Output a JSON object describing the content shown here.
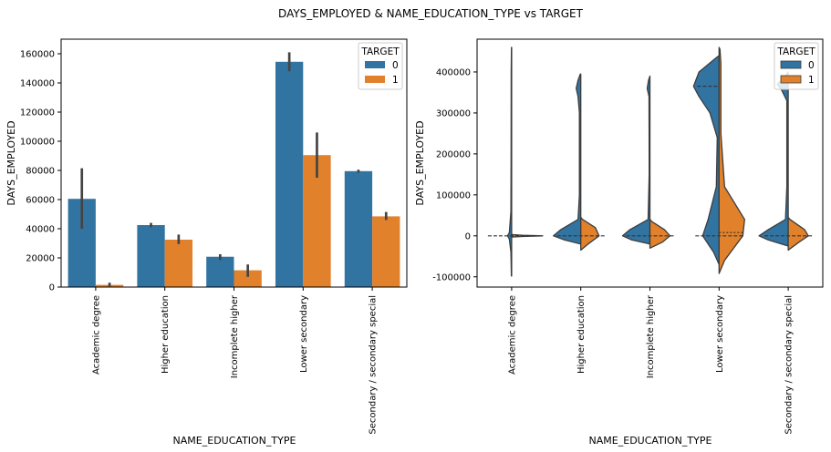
{
  "figure": {
    "title": "DAYS_EMPLOYED & NAME_EDUCATION_TYPE vs TARGET"
  },
  "colors": {
    "c0": "#3274a1",
    "c1": "#e1812c",
    "err": "#444444",
    "violin_edge": "#3c3c3c"
  },
  "chart_data": [
    {
      "type": "bar",
      "xlabel": "NAME_EDUCATION_TYPE",
      "ylabel": "DAYS_EMPLOYED",
      "ylim": [
        0,
        170000
      ],
      "yticks": [
        0,
        20000,
        40000,
        60000,
        80000,
        100000,
        120000,
        140000,
        160000
      ],
      "categories": [
        "Academic degree",
        "Higher education",
        "Incomplete higher",
        "Lower secondary",
        "Secondary / secondary special"
      ],
      "legend": {
        "title": "TARGET",
        "placement": "top-right"
      },
      "series": [
        {
          "name": "0",
          "values": [
            60500,
            42500,
            20800,
            154500,
            79500
          ],
          "ci": [
            [
              40000,
              81500
            ],
            [
              41000,
              44000
            ],
            [
              18500,
              22500
            ],
            [
              148000,
              161000
            ],
            [
              78500,
              80500
            ]
          ]
        },
        {
          "name": "1",
          "values": [
            1500,
            32500,
            11500,
            90500,
            48500
          ],
          "ci": [
            [
              500,
              3000
            ],
            [
              29500,
              36000
            ],
            [
              7000,
              15500
            ],
            [
              75000,
              106000
            ],
            [
              46000,
              51500
            ]
          ]
        }
      ]
    },
    {
      "type": "violin",
      "split": true,
      "xlabel": "NAME_EDUCATION_TYPE",
      "ylabel": "DAYS_EMPLOYED",
      "ylim": [
        -125000,
        480000
      ],
      "yticks": [
        -100000,
        0,
        100000,
        200000,
        300000,
        400000
      ],
      "categories": [
        "Academic degree",
        "Higher education",
        "Incomplete higher",
        "Lower secondary",
        "Secondary / secondary special"
      ],
      "legend": {
        "title": "TARGET",
        "placement": "top-right"
      },
      "ranges": [
        {
          "s0": [
            -98000,
            460000
          ],
          "s1": [
            -3000,
            3000
          ]
        },
        {
          "s0": [
            -20000,
            395000
          ],
          "s1": [
            -35000,
            45000
          ]
        },
        {
          "s0": [
            -20000,
            390000
          ],
          "s1": [
            -30000,
            40000
          ]
        },
        {
          "s0": [
            -70000,
            440000
          ],
          "s1": [
            -92000,
            460000
          ]
        },
        {
          "s0": [
            -25000,
            400000
          ],
          "s1": [
            -35000,
            45000
          ]
        }
      ],
      "medians": [
        0,
        0,
        0,
        0,
        0
      ]
    }
  ]
}
